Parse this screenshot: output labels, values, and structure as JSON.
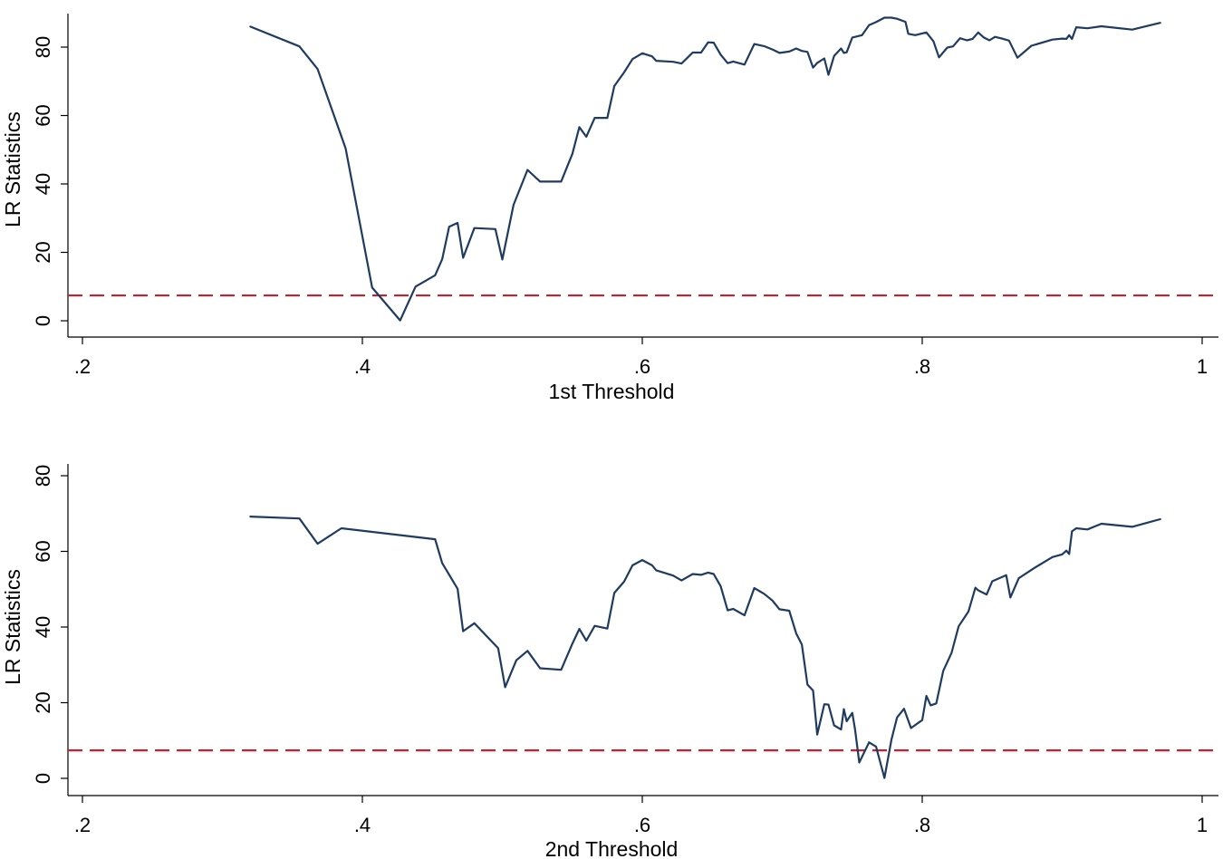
{
  "colors": {
    "series": "#1f3b5f",
    "reference": "#c8202d"
  },
  "chart_data": [
    {
      "type": "line",
      "xlabel": "1st Threshold",
      "ylabel": "LR Statistics",
      "xlim": [
        0.17,
        1.0
      ],
      "ylim": [
        -5,
        93
      ],
      "x_ticks": [
        0.2,
        0.4,
        0.6,
        0.8,
        1.0
      ],
      "x_tick_labels": [
        ".2",
        ".4",
        ".6",
        ".8",
        "1"
      ],
      "y_ticks": [
        0,
        20,
        40,
        60,
        80
      ],
      "y_tick_labels": [
        "0",
        "20",
        "40",
        "60",
        "80"
      ],
      "reference_line": 7.4,
      "series": [
        {
          "x": [
            0.32,
            0.355,
            0.368,
            0.388,
            0.407,
            0.427,
            0.438,
            0.452,
            0.457,
            0.462,
            0.468,
            0.472,
            0.48,
            0.495,
            0.5,
            0.508,
            0.518,
            0.527,
            0.542,
            0.55,
            0.555,
            0.56,
            0.566,
            0.575,
            0.58,
            0.587,
            0.593,
            0.6,
            0.607,
            0.61,
            0.622,
            0.628,
            0.636,
            0.642,
            0.647,
            0.651,
            0.656,
            0.661,
            0.665,
            0.673,
            0.68,
            0.687,
            0.693,
            0.698,
            0.705,
            0.71,
            0.714,
            0.718,
            0.722,
            0.725,
            0.73,
            0.733,
            0.737,
            0.742,
            0.744,
            0.746,
            0.75,
            0.757,
            0.762,
            0.767,
            0.773,
            0.778,
            0.782,
            0.788,
            0.79,
            0.795,
            0.803,
            0.808,
            0.812,
            0.818,
            0.822,
            0.827,
            0.832,
            0.836,
            0.84,
            0.844,
            0.848,
            0.852,
            0.857,
            0.862,
            0.868,
            0.878,
            0.893,
            0.9,
            0.903,
            0.905,
            0.907,
            0.91,
            0.918,
            0.928,
            0.95,
            0.97
          ],
          "y": [
            86,
            80.2,
            73.6,
            50.4,
            9.7,
            0.1,
            10,
            13.3,
            18,
            27.5,
            28.6,
            18.4,
            27.1,
            26.8,
            17.9,
            33.9,
            44.1,
            40.7,
            40.7,
            48.8,
            56.6,
            53.8,
            59.3,
            59.3,
            68.6,
            72.6,
            76.5,
            78.2,
            77.3,
            76,
            75.7,
            75.2,
            78.4,
            78.4,
            81.4,
            81.3,
            77.8,
            75.3,
            75.8,
            74.9,
            80.9,
            80.3,
            79.3,
            78.3,
            78.7,
            79.6,
            78.9,
            78.6,
            74,
            75.4,
            76.7,
            71.9,
            77.4,
            79.6,
            78.3,
            78.5,
            82.8,
            83.5,
            86.4,
            87.3,
            88.6,
            88.6,
            88.3,
            87.4,
            83.9,
            83.5,
            84.3,
            81.7,
            77,
            79.9,
            80.2,
            82.6,
            82,
            82.4,
            84.3,
            82.8,
            82,
            83,
            82.5,
            81.9,
            76.9,
            80.4,
            82.2,
            82.5,
            82.4,
            83.5,
            82.4,
            85.8,
            85.5,
            86.1,
            85.1,
            87.1
          ]
        }
      ]
    },
    {
      "type": "line",
      "xlabel": "2nd Threshold",
      "ylabel": "LR Statistics",
      "xlim": [
        0.17,
        1.0
      ],
      "ylim": [
        -5,
        85
      ],
      "x_ticks": [
        0.2,
        0.4,
        0.6,
        0.8,
        1.0
      ],
      "x_tick_labels": [
        ".2",
        ".4",
        ".6",
        ".8",
        "1"
      ],
      "y_ticks": [
        0,
        20,
        40,
        60,
        80
      ],
      "y_tick_labels": [
        "0",
        "20",
        "40",
        "60",
        "80"
      ],
      "reference_line": 7.4,
      "series": [
        {
          "x": [
            0.32,
            0.355,
            0.368,
            0.385,
            0.452,
            0.457,
            0.468,
            0.472,
            0.48,
            0.497,
            0.502,
            0.51,
            0.518,
            0.527,
            0.542,
            0.55,
            0.555,
            0.56,
            0.566,
            0.575,
            0.58,
            0.587,
            0.593,
            0.6,
            0.607,
            0.61,
            0.622,
            0.628,
            0.636,
            0.642,
            0.647,
            0.651,
            0.656,
            0.661,
            0.665,
            0.673,
            0.68,
            0.687,
            0.693,
            0.698,
            0.705,
            0.71,
            0.714,
            0.718,
            0.722,
            0.725,
            0.73,
            0.733,
            0.737,
            0.742,
            0.744,
            0.746,
            0.75,
            0.752,
            0.755,
            0.762,
            0.767,
            0.773,
            0.778,
            0.782,
            0.787,
            0.792,
            0.8,
            0.803,
            0.806,
            0.81,
            0.815,
            0.821,
            0.826,
            0.833,
            0.838,
            0.84,
            0.846,
            0.85,
            0.86,
            0.863,
            0.869,
            0.88,
            0.893,
            0.9,
            0.903,
            0.905,
            0.907,
            0.91,
            0.918,
            0.928,
            0.95,
            0.97
          ],
          "y": [
            69.2,
            68.7,
            62,
            66.1,
            63.2,
            56.9,
            50.1,
            38.9,
            41,
            34.4,
            24.1,
            31.2,
            33.7,
            29.1,
            28.7,
            35.6,
            39.5,
            36.4,
            40.3,
            39.6,
            49,
            52,
            56.3,
            57.7,
            56.3,
            55,
            53.6,
            52.3,
            54,
            53.8,
            54.4,
            54,
            50.8,
            44.4,
            44.8,
            43.1,
            50.3,
            48.8,
            47,
            44.7,
            44.3,
            38.3,
            35.4,
            24.8,
            23.2,
            11.6,
            19.6,
            19.5,
            14,
            12.9,
            18.3,
            15.1,
            17.3,
            13,
            4.2,
            9.5,
            8.4,
            0.1,
            10.2,
            16.1,
            18.4,
            13.3,
            15.4,
            21.8,
            19.3,
            19.8,
            28.4,
            33.2,
            40.2,
            44.1,
            50.4,
            49.7,
            48.6,
            52.1,
            53.7,
            47.8,
            52.9,
            55.6,
            58.5,
            59.2,
            60.2,
            59.3,
            65.3,
            66.1,
            65.8,
            67.3,
            66.5,
            68.5
          ]
        }
      ]
    }
  ]
}
